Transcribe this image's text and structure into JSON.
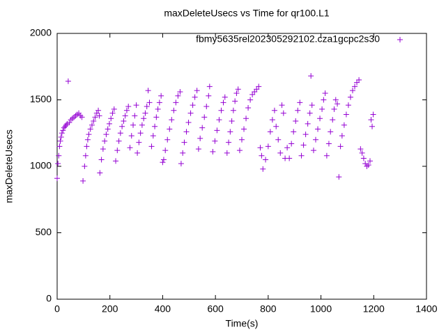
{
  "chart_data": {
    "type": "scatter",
    "title": "maxDeleteUsecs vs Time for qr100.L1",
    "x_label": "Time(s)",
    "y_label": "maxDeleteUsecs",
    "xlim": [
      0,
      1400
    ],
    "xticks": [
      0,
      200,
      400,
      600,
      800,
      1000,
      1200,
      1400
    ],
    "ylim": [
      0,
      2000
    ],
    "yticks": [
      0,
      500,
      1000,
      1500,
      2000
    ],
    "legend": "top-right",
    "x": [
      0,
      3,
      6,
      9,
      12,
      15,
      18,
      22,
      26,
      30,
      34,
      38,
      42,
      46,
      52,
      58,
      64,
      70,
      76,
      82,
      88,
      94,
      98,
      104,
      108,
      112,
      116,
      120,
      126,
      132,
      138,
      144,
      150,
      156,
      160,
      162,
      168,
      174,
      180,
      186,
      192,
      198,
      204,
      210,
      216,
      222,
      228,
      234,
      240,
      246,
      252,
      258,
      264,
      270,
      276,
      282,
      288,
      294,
      300,
      304,
      310,
      316,
      322,
      328,
      334,
      340,
      345,
      350,
      358,
      364,
      370,
      376,
      382,
      388,
      394,
      400,
      404,
      410,
      418,
      426,
      434,
      442,
      450,
      458,
      466,
      470,
      476,
      482,
      490,
      498,
      506,
      514,
      522,
      530,
      536,
      542,
      550,
      558,
      566,
      574,
      578,
      590,
      598,
      606,
      614,
      622,
      630,
      636,
      644,
      650,
      656,
      662,
      668,
      674,
      680,
      686,
      692,
      700,
      708,
      716,
      724,
      732,
      740,
      748,
      756,
      764,
      770,
      775,
      780,
      790,
      800,
      808,
      816,
      824,
      830,
      838,
      846,
      852,
      858,
      864,
      872,
      880,
      888,
      896,
      904,
      912,
      920,
      926,
      934,
      942,
      950,
      958,
      962,
      966,
      972,
      980,
      988,
      996,
      1004,
      1010,
      1016,
      1022,
      1030,
      1036,
      1044,
      1050,
      1056,
      1062,
      1068,
      1074,
      1080,
      1088,
      1096,
      1104,
      1112,
      1120,
      1128,
      1136,
      1144,
      1150,
      1156,
      1162,
      1168,
      1174,
      1180,
      1186,
      1190,
      1194,
      1198
    ],
    "series": [
      {
        "name": "fbmy5635rel202305292102.cza1gcpc2s30",
        "color": "#9400d3",
        "values": [
          910,
          1020,
          1080,
          1150,
          1190,
          1220,
          1250,
          1270,
          1290,
          1300,
          1310,
          1320,
          1640,
          1330,
          1350,
          1360,
          1370,
          1380,
          1390,
          1400,
          1380,
          1370,
          890,
          1000,
          1080,
          1150,
          1200,
          1240,
          1280,
          1310,
          1340,
          1370,
          1400,
          1420,
          1380,
          950,
          1050,
          1130,
          1190,
          1240,
          1280,
          1320,
          1360,
          1400,
          1430,
          1040,
          1120,
          1190,
          1250,
          1300,
          1340,
          1380,
          1420,
          1450,
          1140,
          1230,
          1310,
          1380,
          1460,
          1100,
          1180,
          1250,
          1310,
          1360,
          1400,
          1450,
          1570,
          1480,
          1150,
          1230,
          1300,
          1370,
          1430,
          1480,
          1530,
          1030,
          1050,
          1120,
          1200,
          1280,
          1350,
          1420,
          1480,
          1530,
          1560,
          1020,
          1100,
          1180,
          1260,
          1330,
          1400,
          1460,
          1520,
          1570,
          1130,
          1210,
          1290,
          1370,
          1450,
          1530,
          1600,
          1110,
          1190,
          1270,
          1350,
          1420,
          1480,
          1520,
          1100,
          1180,
          1260,
          1340,
          1420,
          1490,
          1550,
          1580,
          1120,
          1200,
          1280,
          1360,
          1440,
          1500,
          1540,
          1560,
          1580,
          1600,
          1140,
          1080,
          980,
          1050,
          1150,
          1260,
          1350,
          1420,
          1300,
          1200,
          1100,
          1460,
          1400,
          1060,
          1140,
          1060,
          1170,
          1260,
          1340,
          1420,
          1480,
          1080,
          1160,
          1240,
          1320,
          1400,
          1680,
          1460,
          1120,
          1200,
          1280,
          1360,
          1430,
          1500,
          1550,
          1080,
          1170,
          1260,
          1350,
          1430,
          1500,
          1470,
          920,
          1150,
          1230,
          1310,
          1390,
          1460,
          1520,
          1570,
          1600,
          1630,
          1650,
          1130,
          1100,
          1060,
          1020,
          1000,
          1010,
          1040,
          1350,
          1300,
          1390
        ]
      }
    ]
  }
}
